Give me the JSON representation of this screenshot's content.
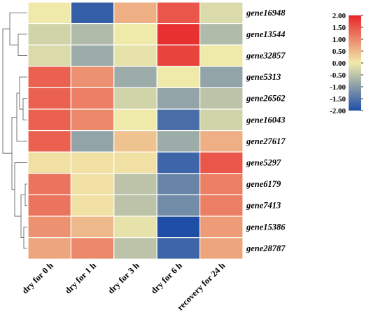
{
  "chart_data": {
    "type": "heatmap",
    "title": "",
    "columns": [
      "dry for 0 h",
      "dry for 1 h",
      "dry for 3 h",
      "dry for 6 h",
      "recovery for 24 h"
    ],
    "rows": [
      "gene16948",
      "gene13544",
      "gene32857",
      "gene5313",
      "gene26562",
      "gene16043",
      "gene27617",
      "gene5297",
      "gene6179",
      "gene7413",
      "gene15386",
      "gene28787"
    ],
    "values": [
      [
        0.0,
        -1.8,
        0.6,
        1.5,
        -0.2
      ],
      [
        -0.3,
        -0.6,
        0.0,
        1.9,
        -0.6
      ],
      [
        -0.2,
        -0.8,
        -0.1,
        1.7,
        0.0
      ],
      [
        1.4,
        0.9,
        -0.8,
        0.0,
        -0.9
      ],
      [
        1.4,
        1.1,
        -0.3,
        -0.9,
        -0.5
      ],
      [
        1.4,
        1.0,
        0.0,
        -1.6,
        -0.3
      ],
      [
        1.4,
        -0.9,
        0.4,
        -0.8,
        0.6
      ],
      [
        0.1,
        0.1,
        0.1,
        -1.7,
        1.5
      ],
      [
        1.2,
        0.1,
        -0.5,
        -1.3,
        1.1
      ],
      [
        1.2,
        0.1,
        -0.5,
        -1.2,
        1.1
      ],
      [
        0.9,
        0.5,
        -0.1,
        -2.0,
        0.8
      ],
      [
        0.7,
        1.0,
        -0.5,
        -1.7,
        0.7
      ]
    ],
    "colorbar": {
      "min": -2.0,
      "max": 2.0,
      "ticks": [
        "2.00",
        "1.50",
        "1.00",
        "0.50",
        "0.00",
        "-0.50",
        "-1.00",
        "-1.50",
        "-2.00"
      ],
      "colors": [
        "#1f4ea6",
        "#f0eaaa",
        "#e8262a"
      ]
    },
    "dendrogram": "row"
  }
}
